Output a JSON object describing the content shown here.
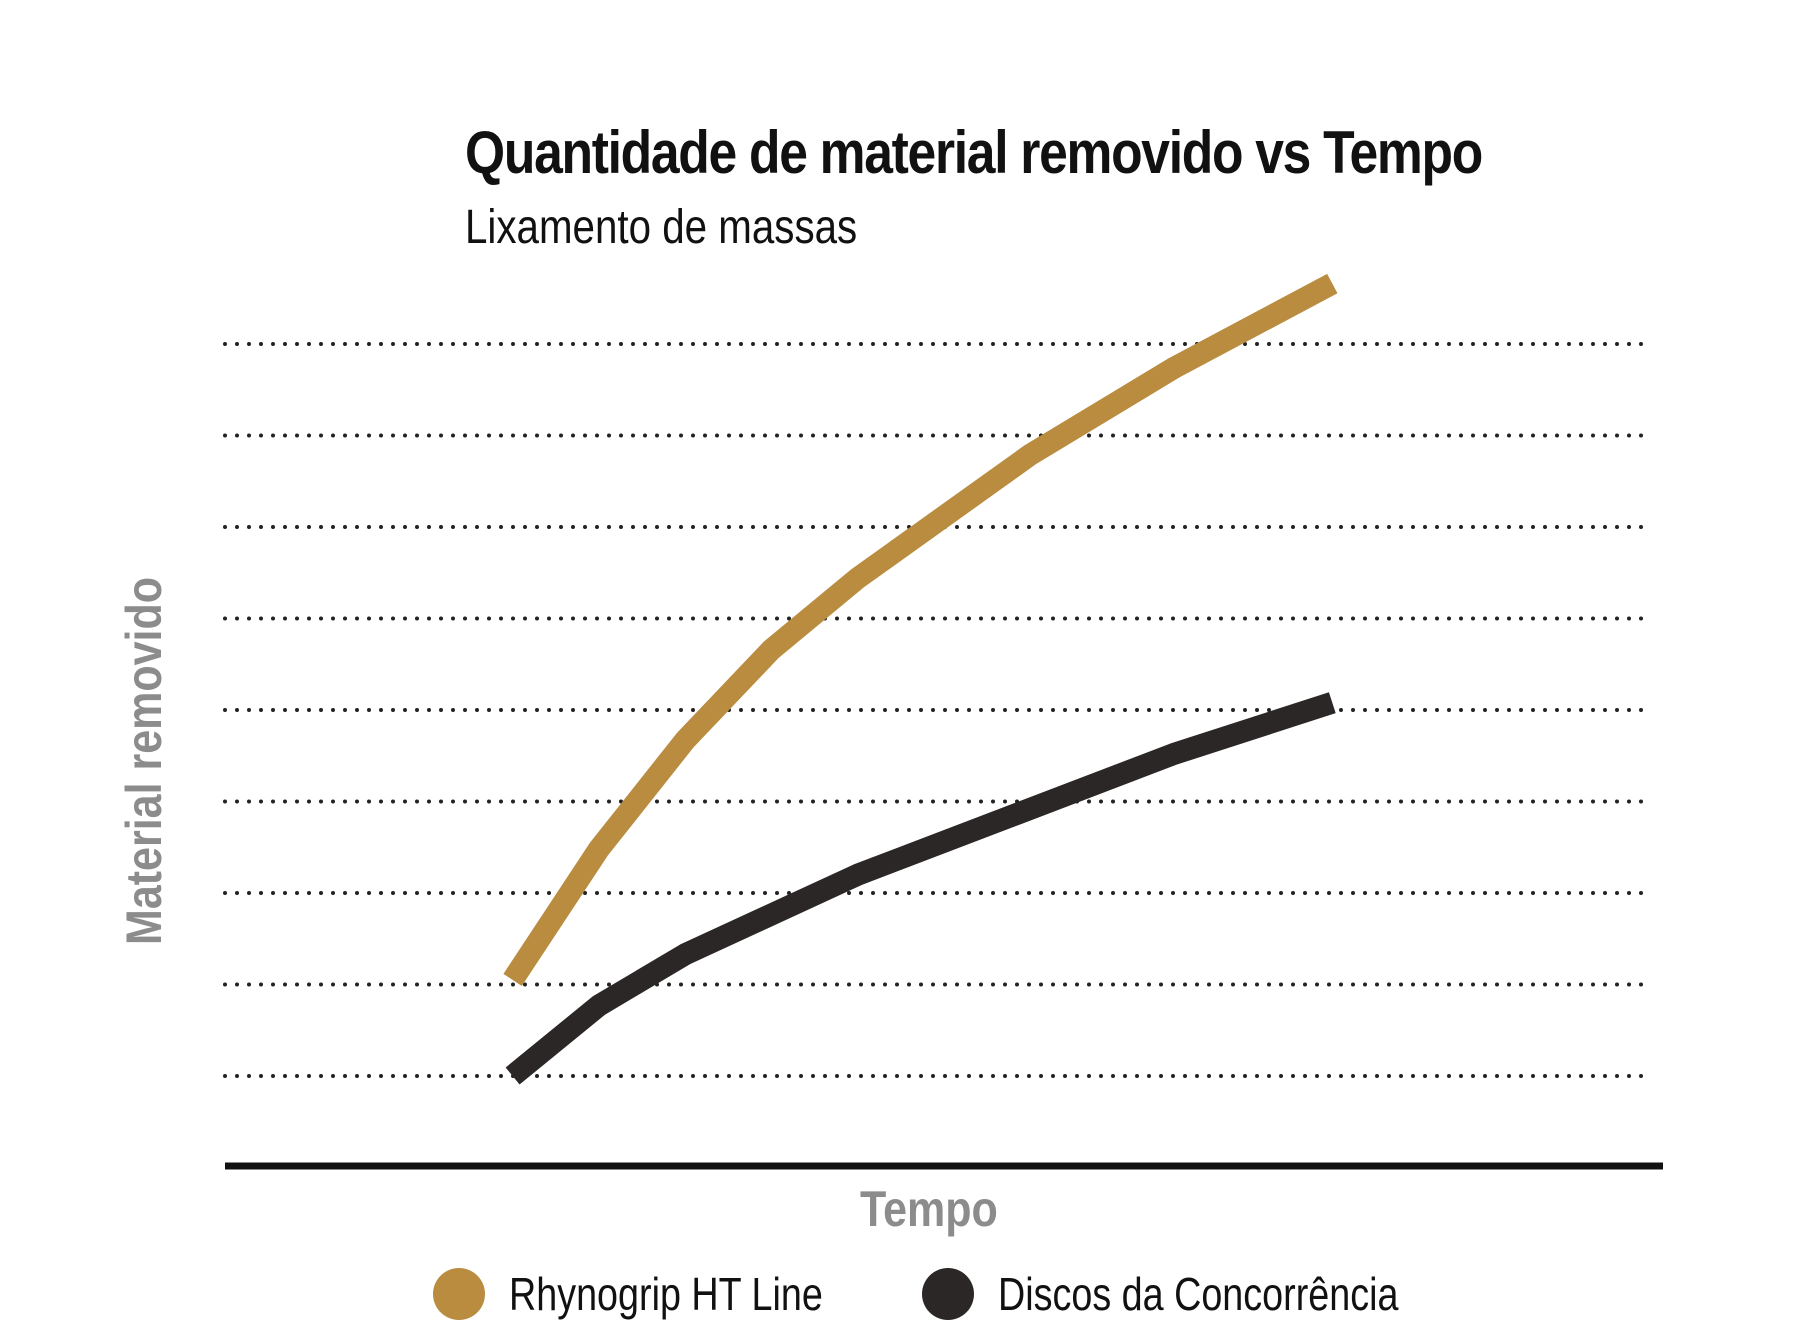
{
  "chart_data": {
    "type": "line",
    "title": "Quantidade de material removido vs Tempo",
    "subtitle": "Lixamento de massas",
    "xlabel": "Tempo",
    "ylabel": "Material removido",
    "x_ticks_shown": false,
    "y_ticks_shown": false,
    "grid": "horizontal dotted lines",
    "legend_position": "bottom",
    "series": [
      {
        "name": "Rhynogrip HT Line",
        "color": "#B98C3F",
        "points": [
          [
            0.2,
            1.05
          ],
          [
            0.26,
            2.48
          ],
          [
            0.32,
            3.67
          ],
          [
            0.38,
            4.66
          ],
          [
            0.44,
            5.44
          ],
          [
            0.56,
            6.79
          ],
          [
            0.66,
            7.74
          ],
          [
            0.77,
            8.66
          ]
        ]
      },
      {
        "name": "Discos da Concorrência",
        "color": "#2B2726",
        "points": [
          [
            0.2,
            0.0
          ],
          [
            0.26,
            0.77
          ],
          [
            0.32,
            1.33
          ],
          [
            0.44,
            2.2
          ],
          [
            0.55,
            2.86
          ],
          [
            0.66,
            3.52
          ],
          [
            0.77,
            4.08
          ]
        ]
      }
    ],
    "xlim": [
      0,
      1
    ],
    "ylim": [
      -0.6,
      10
    ]
  },
  "colors": {
    "axis": "#111111",
    "grid": "#222222",
    "axis_label": "#8C8C8C",
    "text": "#111111"
  }
}
